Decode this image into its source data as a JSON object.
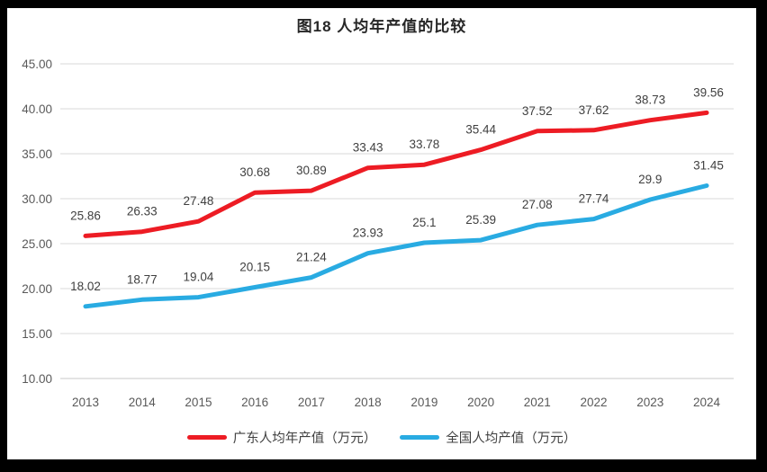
{
  "title": "图18 人均年产值的比较",
  "chart_data": {
    "type": "line",
    "title": "图18 人均年产值的比较",
    "categories": [
      "2013",
      "2014",
      "2015",
      "2016",
      "2017",
      "2018",
      "2019",
      "2020",
      "2021",
      "2022",
      "2023",
      "2024"
    ],
    "series": [
      {
        "name": "广东人均年产值（万元）",
        "color": "#ED1C24",
        "values": [
          25.86,
          26.33,
          27.48,
          30.68,
          30.89,
          33.43,
          33.78,
          35.44,
          37.52,
          37.62,
          38.73,
          39.56
        ]
      },
      {
        "name": "全国人均产值（万元）",
        "color": "#29ABE2",
        "values": [
          18.02,
          18.77,
          19.04,
          20.15,
          21.24,
          23.93,
          25.1,
          25.39,
          27.08,
          27.74,
          29.9,
          31.45
        ]
      }
    ],
    "xlabel": "",
    "ylabel": "",
    "ylim": [
      10,
      45
    ],
    "ytick_step": 5,
    "ytick_labels": [
      "10.00",
      "15.00",
      "20.00",
      "25.00",
      "30.00",
      "35.00",
      "40.00",
      "45.00"
    ],
    "grid": true,
    "legend_position": "bottom",
    "data_labels": true
  },
  "colors": {
    "background": "#ffffff",
    "frame": "#000000",
    "gridline": "#D9D9D9",
    "axis_line": "#C8C8C8",
    "axis_text": "#595959",
    "data_label_text": "#404040",
    "title_text": "#262626",
    "series_guangdong": "#ED1C24",
    "series_national": "#29ABE2"
  }
}
